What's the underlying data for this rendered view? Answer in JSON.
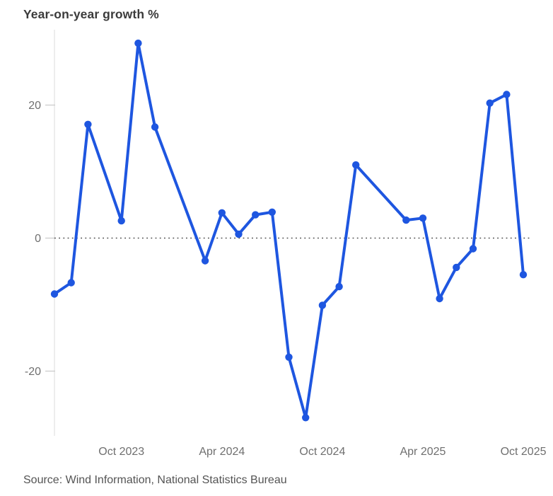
{
  "chart_data": {
    "type": "line",
    "title": "Year-on-year growth %",
    "source": "Source: Wind Information, National Statistics Bureau",
    "xlabel": "",
    "ylabel": "Year-on-year growth %",
    "legend": "none",
    "grid": "off",
    "zero_baseline": "dotted",
    "x_ticks": [
      "Oct 2023",
      "Apr 2024",
      "Oct 2024",
      "Apr 2025",
      "Oct 2025"
    ],
    "y_ticks": [
      20,
      0,
      -20
    ],
    "ylim": [
      -30,
      31
    ],
    "x_range": [
      "Jun 2023",
      "Oct 2025"
    ],
    "series": [
      {
        "name": "Year-on-year growth %",
        "points": [
          {
            "date": "Jun 2023",
            "value": -8.4
          },
          {
            "date": "Jul 2023",
            "value": -6.7
          },
          {
            "date": "Aug 2023",
            "value": 17.1
          },
          {
            "date": "Oct 2023",
            "value": 2.6
          },
          {
            "date": "Nov 2023",
            "value": 29.3
          },
          {
            "date": "Dec 2023",
            "value": 16.7
          },
          {
            "date": "Mar 2024",
            "value": -3.4
          },
          {
            "date": "Apr 2024",
            "value": 3.8
          },
          {
            "date": "May 2024",
            "value": 0.6
          },
          {
            "date": "Jun 2024",
            "value": 3.5
          },
          {
            "date": "Jul 2024",
            "value": 3.9
          },
          {
            "date": "Aug 2024",
            "value": -17.9
          },
          {
            "date": "Sep 2024",
            "value": -27.0
          },
          {
            "date": "Oct 2024",
            "value": -10.1
          },
          {
            "date": "Nov 2024",
            "value": -7.3
          },
          {
            "date": "Dec 2024",
            "value": 11.0
          },
          {
            "date": "Mar 2025",
            "value": 2.7
          },
          {
            "date": "Apr 2025",
            "value": 3.0
          },
          {
            "date": "May 2025",
            "value": -9.1
          },
          {
            "date": "Jun 2025",
            "value": -4.4
          },
          {
            "date": "Jul 2025",
            "value": -1.6
          },
          {
            "date": "Aug 2025",
            "value": 20.3
          },
          {
            "date": "Sep 2025",
            "value": 21.6
          },
          {
            "date": "Oct 2025",
            "value": -5.5
          }
        ]
      }
    ],
    "colors": {
      "line": "#1e56e0",
      "marker": "#1e56e0",
      "title_text": "#3b3b3b",
      "axis_text": "#6f6f6f",
      "source_text": "#545454",
      "axis_line": "#e3e3e3",
      "tick_mark": "#cccccc",
      "zero_line": "#4d4d4d"
    }
  }
}
